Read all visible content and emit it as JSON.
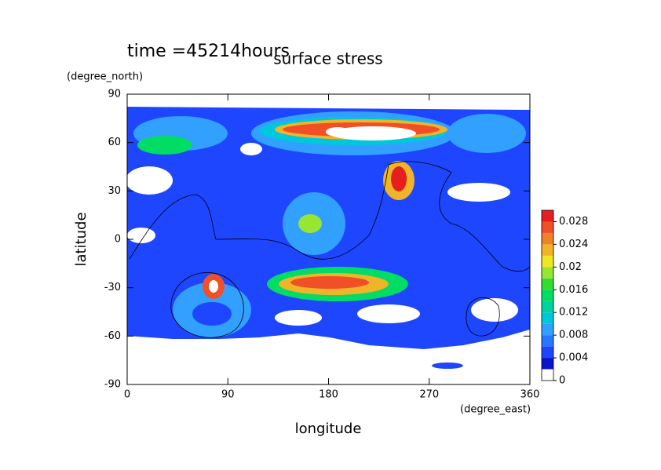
{
  "chart_data": {
    "type": "contour",
    "title": "surface stress",
    "annotation": "time =45214hours",
    "x_label": "longitude",
    "x_unit": "(degree_east)",
    "y_label": "latitude",
    "y_unit": "(degree_north)",
    "xlim": [
      0,
      360
    ],
    "ylim": [
      -90,
      90
    ],
    "xticks": [
      0,
      90,
      180,
      270,
      360
    ],
    "yticks": [
      90,
      60,
      30,
      0,
      -30,
      -60,
      -90
    ],
    "colorbar": {
      "levels": [
        0,
        0.002,
        0.004,
        0.006,
        0.008,
        0.01,
        0.012,
        0.014,
        0.016,
        0.018,
        0.02,
        0.022,
        0.024,
        0.026,
        0.028,
        0.03
      ],
      "colors": [
        "#ffffff",
        "#0a14c8",
        "#1e46ff",
        "#2878ff",
        "#32a0ff",
        "#00c8dc",
        "#00d2a0",
        "#00dc64",
        "#32dc32",
        "#96e632",
        "#f0e628",
        "#f0b428",
        "#f08228",
        "#f05028",
        "#e61e1e"
      ],
      "ticks": [
        0,
        0.004,
        0.008,
        0.012,
        0.016,
        0.02,
        0.024,
        0.028
      ]
    }
  }
}
